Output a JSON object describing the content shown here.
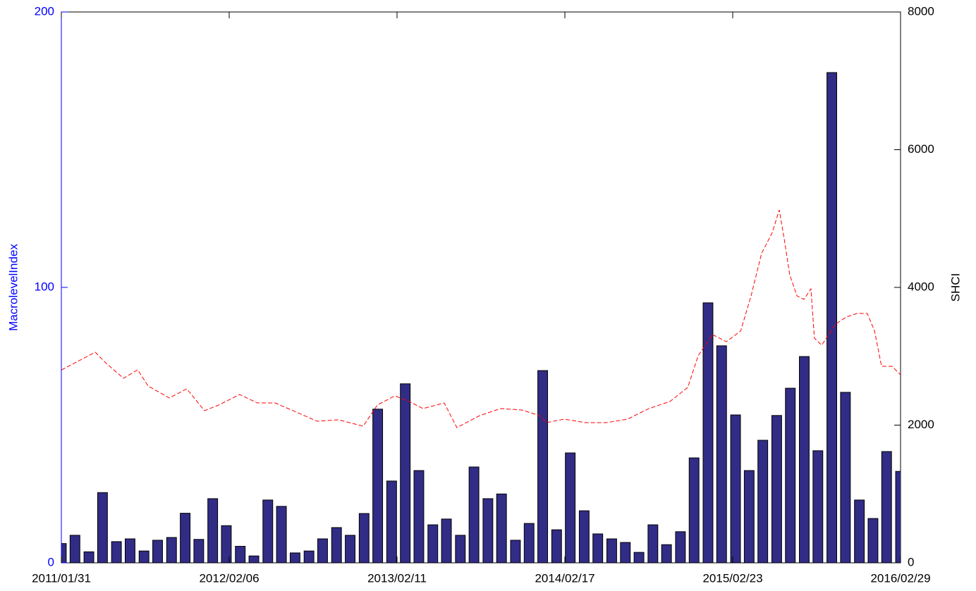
{
  "chart_data": {
    "type": "bar",
    "ylabel": "MacrolevelIndex",
    "y2label": "SHCI",
    "xlim": [
      0,
      265
    ],
    "xticks": [
      {
        "value": 0,
        "label": "2011/01/31"
      },
      {
        "value": 53,
        "label": "2012/02/06"
      },
      {
        "value": 106,
        "label": "2013/02/11"
      },
      {
        "value": 159,
        "label": "2014/02/17"
      },
      {
        "value": 212,
        "label": "2015/02/23"
      },
      {
        "value": 265,
        "label": "2016/02/29"
      }
    ],
    "ylim": [
      0,
      200
    ],
    "yticks": [
      0,
      100,
      200
    ],
    "y2lim": [
      0,
      8000
    ],
    "y2ticks": [
      0,
      2000,
      4000,
      6000,
      8000
    ],
    "ycolor": "#0000ff",
    "series": [
      {
        "type": "bar",
        "color": "#312c85",
        "x": [
          0,
          4.3,
          8.7,
          13.0,
          17.4,
          21.7,
          26.1,
          30.4,
          34.8,
          39.1,
          43.4,
          47.8,
          52.1,
          56.5,
          60.8,
          65.2,
          69.5,
          73.8,
          78.2,
          82.5,
          86.9,
          91.2,
          95.6,
          99.9,
          104.3,
          108.6,
          112.9,
          117.3,
          121.6,
          126.0,
          130.3,
          134.7,
          139.0,
          143.4,
          147.7,
          152.0,
          156.4,
          160.7,
          165.1,
          169.4,
          173.8,
          178.1,
          182.4,
          186.8,
          191.1,
          195.5,
          199.8,
          204.2,
          208.5,
          212.9,
          217.2,
          221.5,
          225.9,
          230.2,
          234.6,
          238.9,
          243.3,
          247.6,
          252.0,
          256.3,
          260.6,
          265.0
        ],
        "values": [
          7,
          10,
          4,
          25.5,
          7.7,
          8.7,
          4.3,
          8.2,
          9.2,
          18,
          8.5,
          23.3,
          13.5,
          6,
          2.5,
          22.8,
          20.5,
          3.6,
          4.3,
          8.7,
          12.8,
          10,
          17.9,
          55.8,
          29.7,
          65,
          33.5,
          13.8,
          15.9,
          10,
          34.8,
          23.3,
          25,
          8.2,
          14.3,
          69.8,
          12,
          39.9,
          18.9,
          10.5,
          8.7,
          7.4,
          3.8,
          13.8,
          6.6,
          11.3,
          38.1,
          94.4,
          78.8,
          53.7,
          33.5,
          44.5,
          53.5,
          63.4,
          74.9,
          40.7,
          178,
          61.9,
          22.8,
          16.1,
          40.4,
          33.2
        ]
      },
      {
        "type": "line",
        "axis": "y2",
        "color": "#ff0000",
        "x": [
          0,
          10.7,
          14.0,
          19.6,
          24.1,
          27.4,
          34.1,
          39.6,
          45.2,
          49.7,
          56.3,
          61.9,
          67.5,
          74.2,
          80.8,
          87.5,
          95.3,
          99.8,
          105.3,
          109.8,
          114.2,
          120.9,
          124.9,
          132.1,
          138.7,
          145.4,
          151.0,
          153.2,
          158.8,
          165.5,
          172.1,
          178.8,
          185.5,
          192.2,
          197.8,
          201.1,
          205.6,
          210.0,
          214.5,
          217.8,
          221.1,
          224.5,
          226.7,
          228.3,
          230.0,
          232.3,
          234.5,
          236.7,
          237.8,
          240.1,
          242.3,
          244.5,
          247.9,
          251.2,
          254.5,
          256.8,
          259.0,
          262.3,
          265.0
        ],
        "values": [
          2800,
          3059,
          2905,
          2680,
          2803,
          2568,
          2394,
          2527,
          2210,
          2292,
          2445,
          2322,
          2322,
          2189,
          2056,
          2077,
          1985,
          2292,
          2425,
          2343,
          2240,
          2322,
          1964,
          2138,
          2240,
          2220,
          2138,
          2036,
          2087,
          2036,
          2036,
          2087,
          2240,
          2343,
          2547,
          3008,
          3315,
          3212,
          3366,
          3877,
          4491,
          4798,
          5125,
          4696,
          4184,
          3877,
          3826,
          3979,
          3263,
          3161,
          3315,
          3468,
          3570,
          3621,
          3621,
          3366,
          2854,
          2854,
          2731
        ]
      }
    ]
  }
}
